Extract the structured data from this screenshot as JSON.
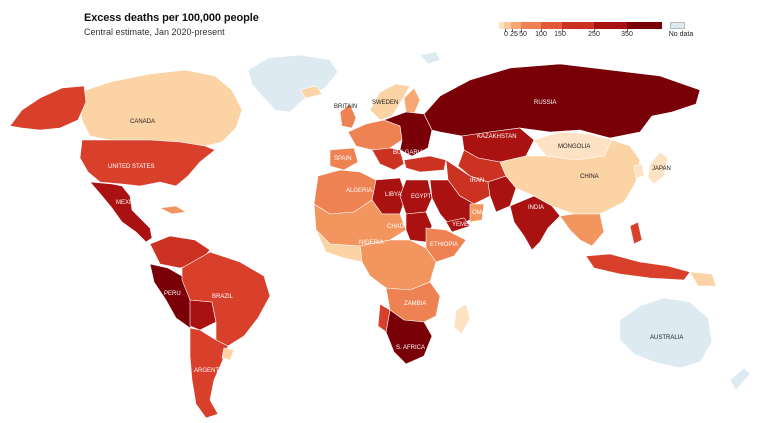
{
  "header": {
    "title": "Excess deaths per 100,000 people",
    "subtitle": "Central estimate, Jan 2020-present"
  },
  "legend": {
    "ticks": [
      "0",
      "25",
      "50",
      "100",
      "150",
      "250",
      "350"
    ],
    "no_data_label": "No data",
    "colors": [
      "#fde3c4",
      "#fbc79c",
      "#f7a674",
      "#ee8253",
      "#e25a39",
      "#cc3222",
      "#aa1111",
      "#7a0007"
    ],
    "no_data_color": "#ddeaf2"
  },
  "countries": {
    "canada": "CANADA",
    "united_states": "UNITED STATES",
    "mexico": "MEXICO",
    "peru": "PERU",
    "brazil": "BRAZIL",
    "argentina": "ARGENTINA",
    "britain": "BRITAIN",
    "sweden": "SWEDEN",
    "spain": "SPAIN",
    "bulgaria": "BULGARIA",
    "russia": "RUSSIA",
    "kazakhstan": "KAZAKHSTAN",
    "mongolia": "MONGOLIA",
    "japan": "JAPAN",
    "china": "CHINA",
    "iran": "IRAN",
    "india": "INDIA",
    "algeria": "ALGERIA",
    "libya": "LIBYA",
    "egypt": "EGYPT",
    "oman": "OMAN",
    "yemen": "YEMEN",
    "chad": "CHAD",
    "nigeria": "NIGERIA",
    "ethiopia": "ETHIOPIA",
    "zambia": "ZAMBIA",
    "s_africa": "S. AFRICA",
    "australia": "AUSTRALIA"
  }
}
